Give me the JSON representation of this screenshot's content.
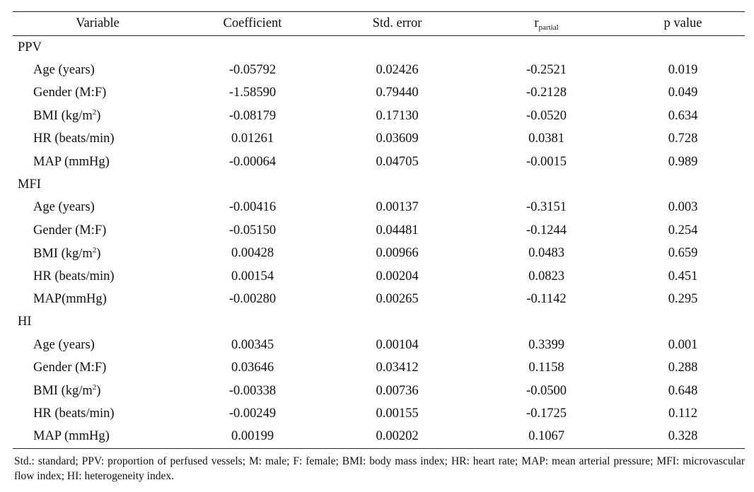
{
  "header": {
    "variable": "Variable",
    "coefficient": "Coefficient",
    "std_error": "Std. error",
    "r_partial_base": "r",
    "r_partial_sub": "partial",
    "p_value": "p value"
  },
  "groups": [
    {
      "label": "PPV",
      "rows": [
        {
          "var": "Age (years)",
          "coef": "-0.05792",
          "se": "0.02426",
          "r": "-0.2521",
          "p": "0.019"
        },
        {
          "var": "Gender (M:F)",
          "coef": "-1.58590",
          "se": "0.79440",
          "r": "-0.2128",
          "p": "0.049"
        },
        {
          "var": "BMI (kg/m",
          "sup": "2",
          "var_end": ")",
          "coef": "-0.08179",
          "se": "0.17130",
          "r": "-0.0520",
          "p": "0.634"
        },
        {
          "var": "HR (beats/min)",
          "coef": "0.01261",
          "se": "0.03609",
          "r": "0.0381",
          "p": "0.728"
        },
        {
          "var": "MAP (mmHg)",
          "coef": "-0.00064",
          "se": "0.04705",
          "r": "-0.0015",
          "p": "0.989"
        }
      ]
    },
    {
      "label": "MFI",
      "rows": [
        {
          "var": "Age (years)",
          "coef": "-0.00416",
          "se": "0.00137",
          "r": "-0.3151",
          "p": "0.003"
        },
        {
          "var": "Gender (M:F)",
          "coef": "-0.05150",
          "se": "0.04481",
          "r": "-0.1244",
          "p": "0.254"
        },
        {
          "var": "BMI (kg/m",
          "sup": "2",
          "var_end": ")",
          "coef": "0.00428",
          "se": "0.00966",
          "r": "0.0483",
          "p": "0.659"
        },
        {
          "var": "HR (beats/min)",
          "coef": "0.00154",
          "se": "0.00204",
          "r": "0.0823",
          "p": "0.451"
        },
        {
          "var": "MAP(mmHg)",
          "coef": "-0.00280",
          "se": "0.00265",
          "r": "-0.1142",
          "p": "0.295"
        }
      ]
    },
    {
      "label": "HI",
      "rows": [
        {
          "var": "Age (years)",
          "coef": "0.00345",
          "se": "0.00104",
          "r": "0.3399",
          "p": "0.001"
        },
        {
          "var": "Gender (M:F)",
          "coef": "0.03646",
          "se": "0.03412",
          "r": "0.1158",
          "p": "0.288"
        },
        {
          "var": "BMI (kg/m",
          "sup": "2",
          "var_end": ")",
          "coef": "-0.00338",
          "se": "0.00736",
          "r": "-0.0500",
          "p": "0.648"
        },
        {
          "var": "HR (beats/min)",
          "coef": "-0.00249",
          "se": "0.00155",
          "r": "-0.1725",
          "p": "0.112"
        },
        {
          "var": "MAP (mmHg)",
          "coef": "0.00199",
          "se": "0.00202",
          "r": "0.1067",
          "p": "0.328"
        }
      ]
    }
  ],
  "footnote": "Std.: standard; PPV: proportion of perfused vessels; M: male; F: female; BMI: body mass index; HR: heart rate; MAP: mean arterial pressure; MFI: microvascular flow index; HI: heterogeneity index."
}
